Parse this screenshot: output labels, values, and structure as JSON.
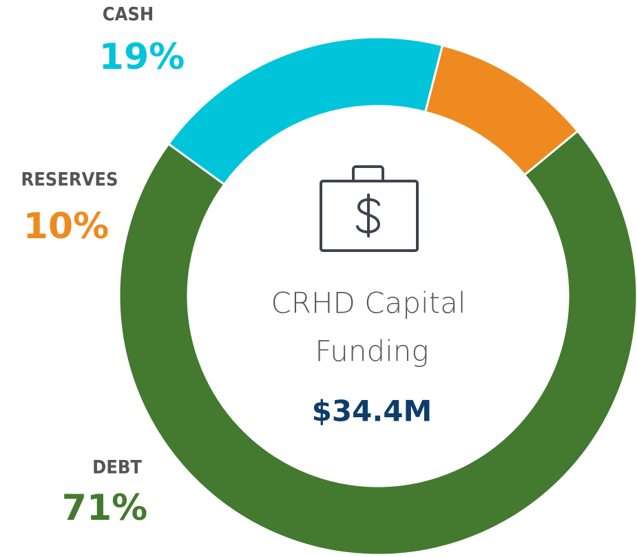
{
  "chart_data": {
    "type": "pie",
    "categories": [
      "CASH",
      "RESERVES",
      "DEBT"
    ],
    "values": [
      19,
      10,
      71
    ],
    "value_labels": [
      "19%",
      "10%",
      "71%"
    ],
    "colors": [
      "#00c4d9",
      "#ee8a20",
      "#437a2f"
    ],
    "center_title": [
      "CRHD Capital",
      "Funding"
    ],
    "center_value": "$34.4M"
  }
}
